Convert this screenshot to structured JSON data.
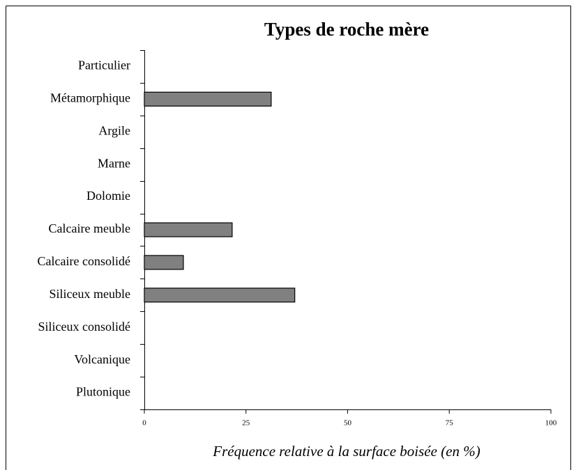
{
  "chart_data": {
    "type": "bar",
    "orientation": "horizontal",
    "title": "Types de roche mère",
    "x_label": "Fréquence relative à la surface boisée (en %)",
    "categories": [
      "Particulier",
      "Métamorphique",
      "Argile",
      "Marne",
      "Dolomie",
      "Calcaire meuble",
      "Calcaire consolidé",
      "Siliceux meuble",
      "Siliceux consolidé",
      "Volcanique",
      "Plutonique"
    ],
    "values": [
      0,
      31.2,
      0,
      0,
      0,
      21.6,
      9.6,
      37,
      0,
      0,
      0
    ],
    "color": "#808080",
    "xlim": [
      0,
      100
    ],
    "xticks": [
      0,
      25,
      50,
      75,
      100
    ],
    "grid": false
  }
}
